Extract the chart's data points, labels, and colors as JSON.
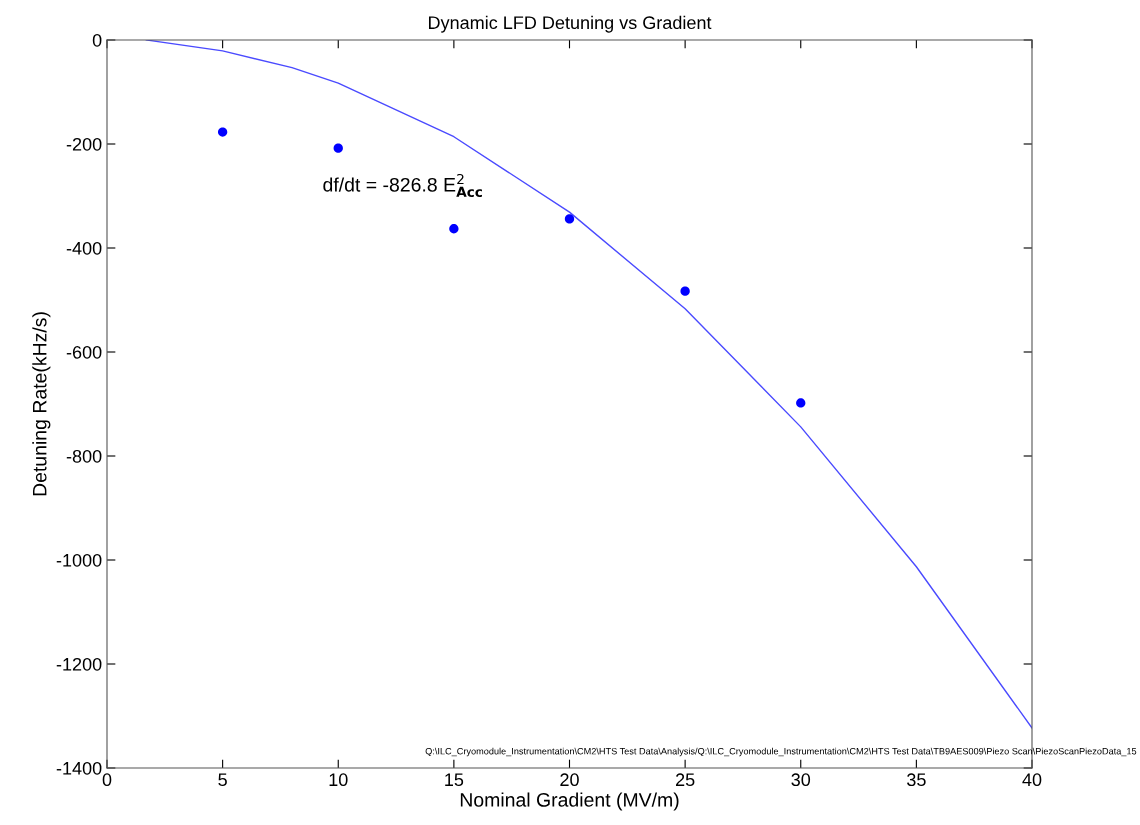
{
  "chart_data": {
    "type": "scatter",
    "title": "Dynamic LFD Detuning vs Gradient",
    "xlabel": "Nominal Gradient (MV/m)",
    "ylabel": "Detuning Rate(kHz/s)",
    "x": [
      5,
      10,
      15,
      20,
      25,
      30
    ],
    "series": [
      {
        "color": "#0000ff",
        "marker": "circle",
        "values": [
          -177,
          -208,
          -363,
          -344,
          -483,
          -698
        ]
      },
      {
        "type": "line",
        "color": "#4a4aff",
        "marker": "none",
        "line_style": "solid",
        "x": [
          1.7,
          5,
          8,
          10,
          15,
          20,
          25,
          30,
          35,
          40
        ],
        "values": [
          0,
          -21,
          -53,
          -83,
          -186,
          -331,
          -517,
          -744,
          -1013,
          -1323
        ]
      }
    ],
    "xlim": [
      0,
      40
    ],
    "xticks": [
      0,
      5,
      10,
      15,
      20,
      25,
      30,
      35,
      40
    ],
    "ylim": [
      -1400,
      0
    ],
    "yticks": [
      -1400,
      -1200,
      -1000,
      -800,
      -600,
      -400,
      -200,
      0
    ],
    "grid": false,
    "legend": false,
    "annotations": [
      "df/dt = -826.8 E$^{2}$$_{Acc}$",
      "Q:\\ILC_Cryomodule_Instrumentation\\CM2\\HTS Test Data\\Analysis/Q:\\ILC_Cryomodule_Instrumentation\\CM2\\HTS Test Data\\TB9AES009\\Piezo Scan\\PiezoScanPiezoData_15"
    ]
  }
}
